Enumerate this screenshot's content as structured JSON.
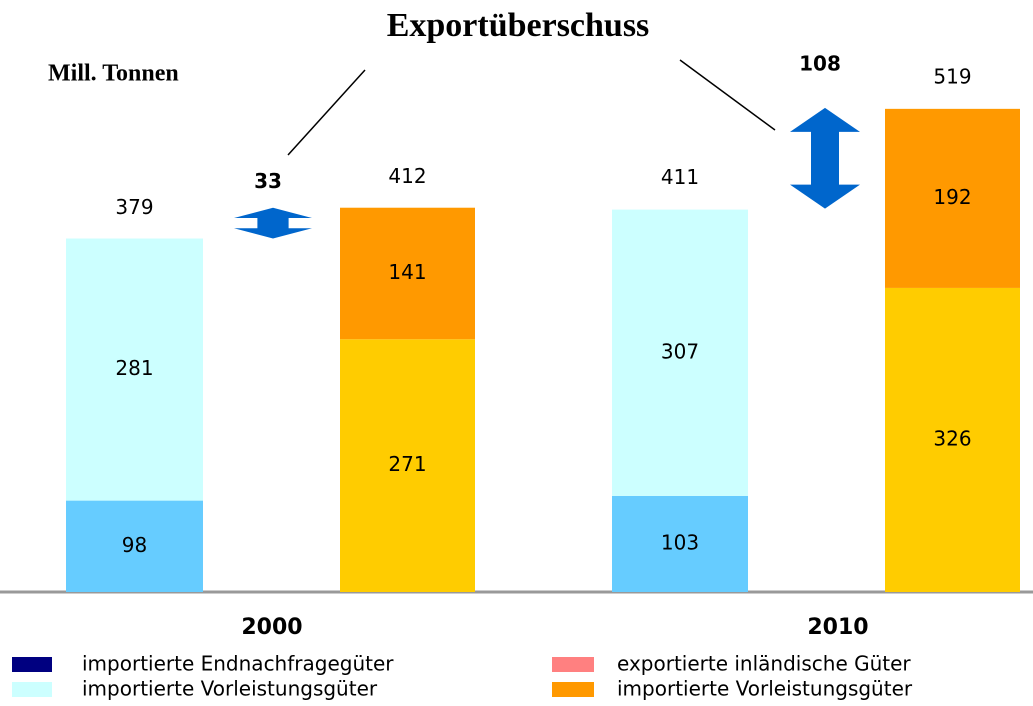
{
  "chart_data": {
    "type": "stacked_bar_pairs",
    "title": "Exportüberschuss",
    "y_label": "Mill. Tonnen",
    "categories": [
      "2000",
      "2010"
    ],
    "ylim": [
      0,
      550
    ],
    "series": [
      {
        "name": "importierte Endnachfragegüter",
        "stack": "import",
        "color": "#66ccff",
        "legend_color": "#000080",
        "values": [
          98,
          103
        ]
      },
      {
        "name": "importierte Vorleistungsgüter",
        "stack": "import",
        "color": "#ccffff",
        "legend_color": "#ccffff",
        "values": [
          281,
          307
        ]
      },
      {
        "name": "exportierte inländische Güter",
        "stack": "export",
        "color": "#ffcc00",
        "legend_color": "#ff8080",
        "values": [
          271,
          326
        ]
      },
      {
        "name": "importierte Vorleistungsgüter",
        "stack": "export",
        "color": "#ff9900",
        "legend_color": "#ff9900",
        "values": [
          141,
          192
        ]
      }
    ],
    "import_totals": [
      379,
      411
    ],
    "export_totals": [
      412,
      519
    ],
    "surplus": [
      33,
      108
    ],
    "arrow_color": "#0066cc"
  }
}
